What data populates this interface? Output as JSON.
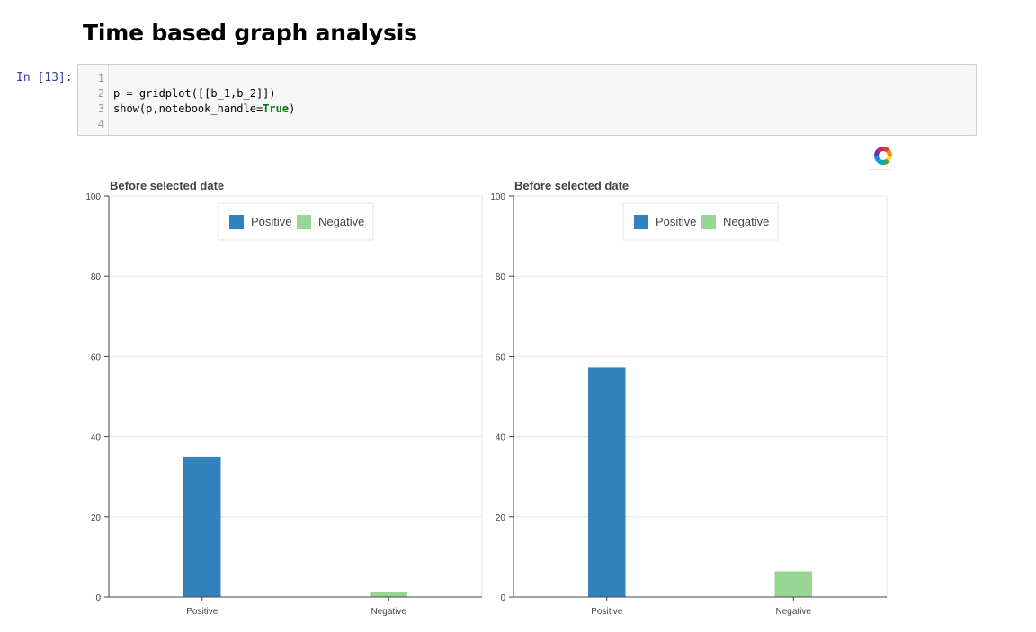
{
  "heading": "Time based graph analysis",
  "cell": {
    "prompt": "In [13]:",
    "lines": [
      {
        "n": "1",
        "parts": []
      },
      {
        "n": "2",
        "parts": [
          {
            "t": "p = gridplot([[b_1,b_2]])",
            "kw": false
          }
        ]
      },
      {
        "n": "3",
        "parts": [
          {
            "t": "show(p,notebook_handle=",
            "kw": false
          },
          {
            "t": "True",
            "kw": true
          },
          {
            "t": ")",
            "kw": false
          }
        ]
      },
      {
        "n": "4",
        "parts": []
      }
    ]
  },
  "toolbar": {
    "logo_icon": "bokeh-logo-icon"
  },
  "chart_data": [
    {
      "type": "bar",
      "title": "Before selected date",
      "categories": [
        "Positive",
        "Negative"
      ],
      "values": [
        35,
        1.2
      ],
      "colors": [
        "#3182bd",
        "#98d694"
      ],
      "legend": [
        "Positive",
        "Negative"
      ],
      "legend_position": "top-center",
      "ylim": [
        0,
        100
      ],
      "yticks": [
        0,
        20,
        40,
        60,
        80,
        100
      ],
      "grid": true
    },
    {
      "type": "bar",
      "title": "Before selected date",
      "categories": [
        "Positive",
        "Negative"
      ],
      "values": [
        57.3,
        6.4
      ],
      "colors": [
        "#3182bd",
        "#98d694"
      ],
      "legend": [
        "Positive",
        "Negative"
      ],
      "legend_position": "top-center",
      "ylim": [
        0,
        100
      ],
      "yticks": [
        0,
        20,
        40,
        60,
        80,
        100
      ],
      "grid": true
    }
  ]
}
